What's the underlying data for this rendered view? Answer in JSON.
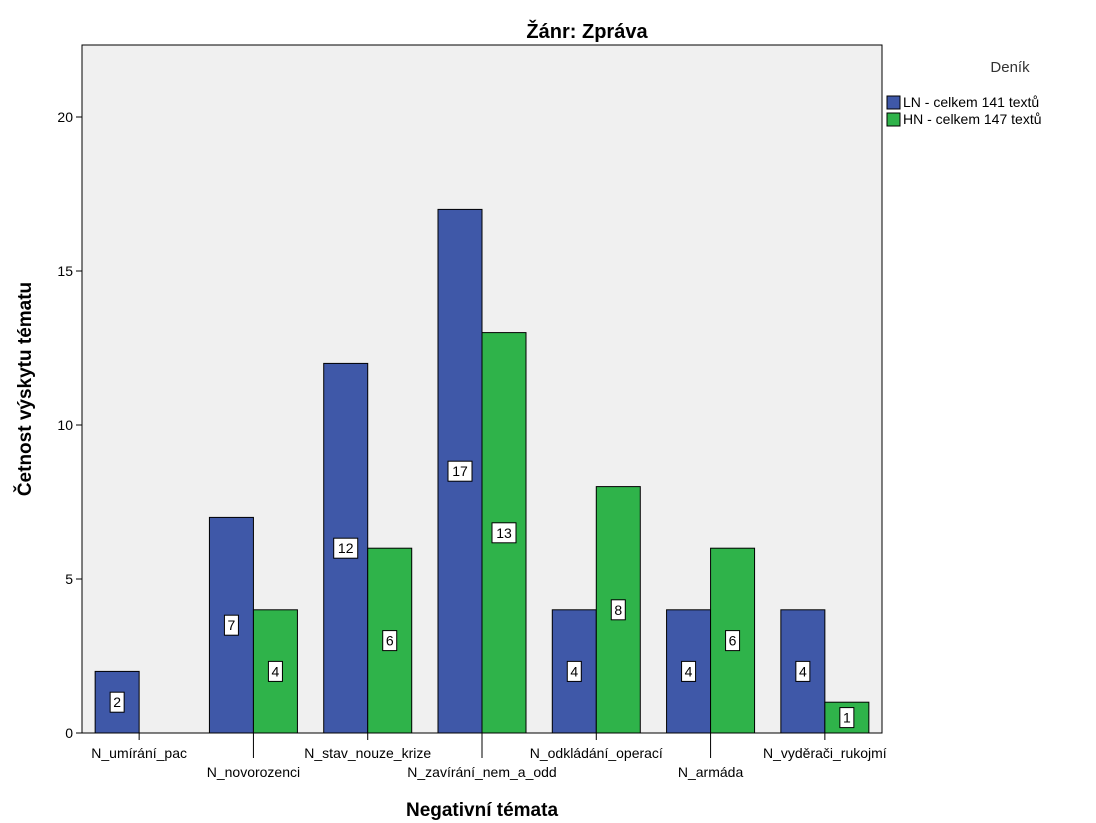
{
  "chart_data": {
    "type": "bar",
    "title": "Žánr: Zpráva",
    "xlabel": "Negativní témata",
    "ylabel": "Četnost výskytu tématu",
    "categories": [
      "N_umírání_pac",
      "N_novorozenci",
      "N_stav_nouze_krize",
      "N_zavírání_nem_a_odd",
      "N_odkládání_operací",
      "N_armáda",
      "N_vyděrači_rukojmí"
    ],
    "legend_title": "Deník",
    "series": [
      {
        "name": "LN - celkem 141 textů",
        "color": "#3f58a8",
        "values": [
          2,
          7,
          12,
          17,
          4,
          4,
          4
        ]
      },
      {
        "name": "HN - celkem 147 textů",
        "color": "#2fb34a",
        "values": [
          null,
          4,
          6,
          13,
          8,
          6,
          1
        ]
      }
    ],
    "ylim": [
      0,
      22
    ],
    "yticks": [
      0,
      5,
      10,
      15,
      20
    ],
    "grid": false,
    "legend_position": "right",
    "plot_background": "#f0f0f0"
  }
}
